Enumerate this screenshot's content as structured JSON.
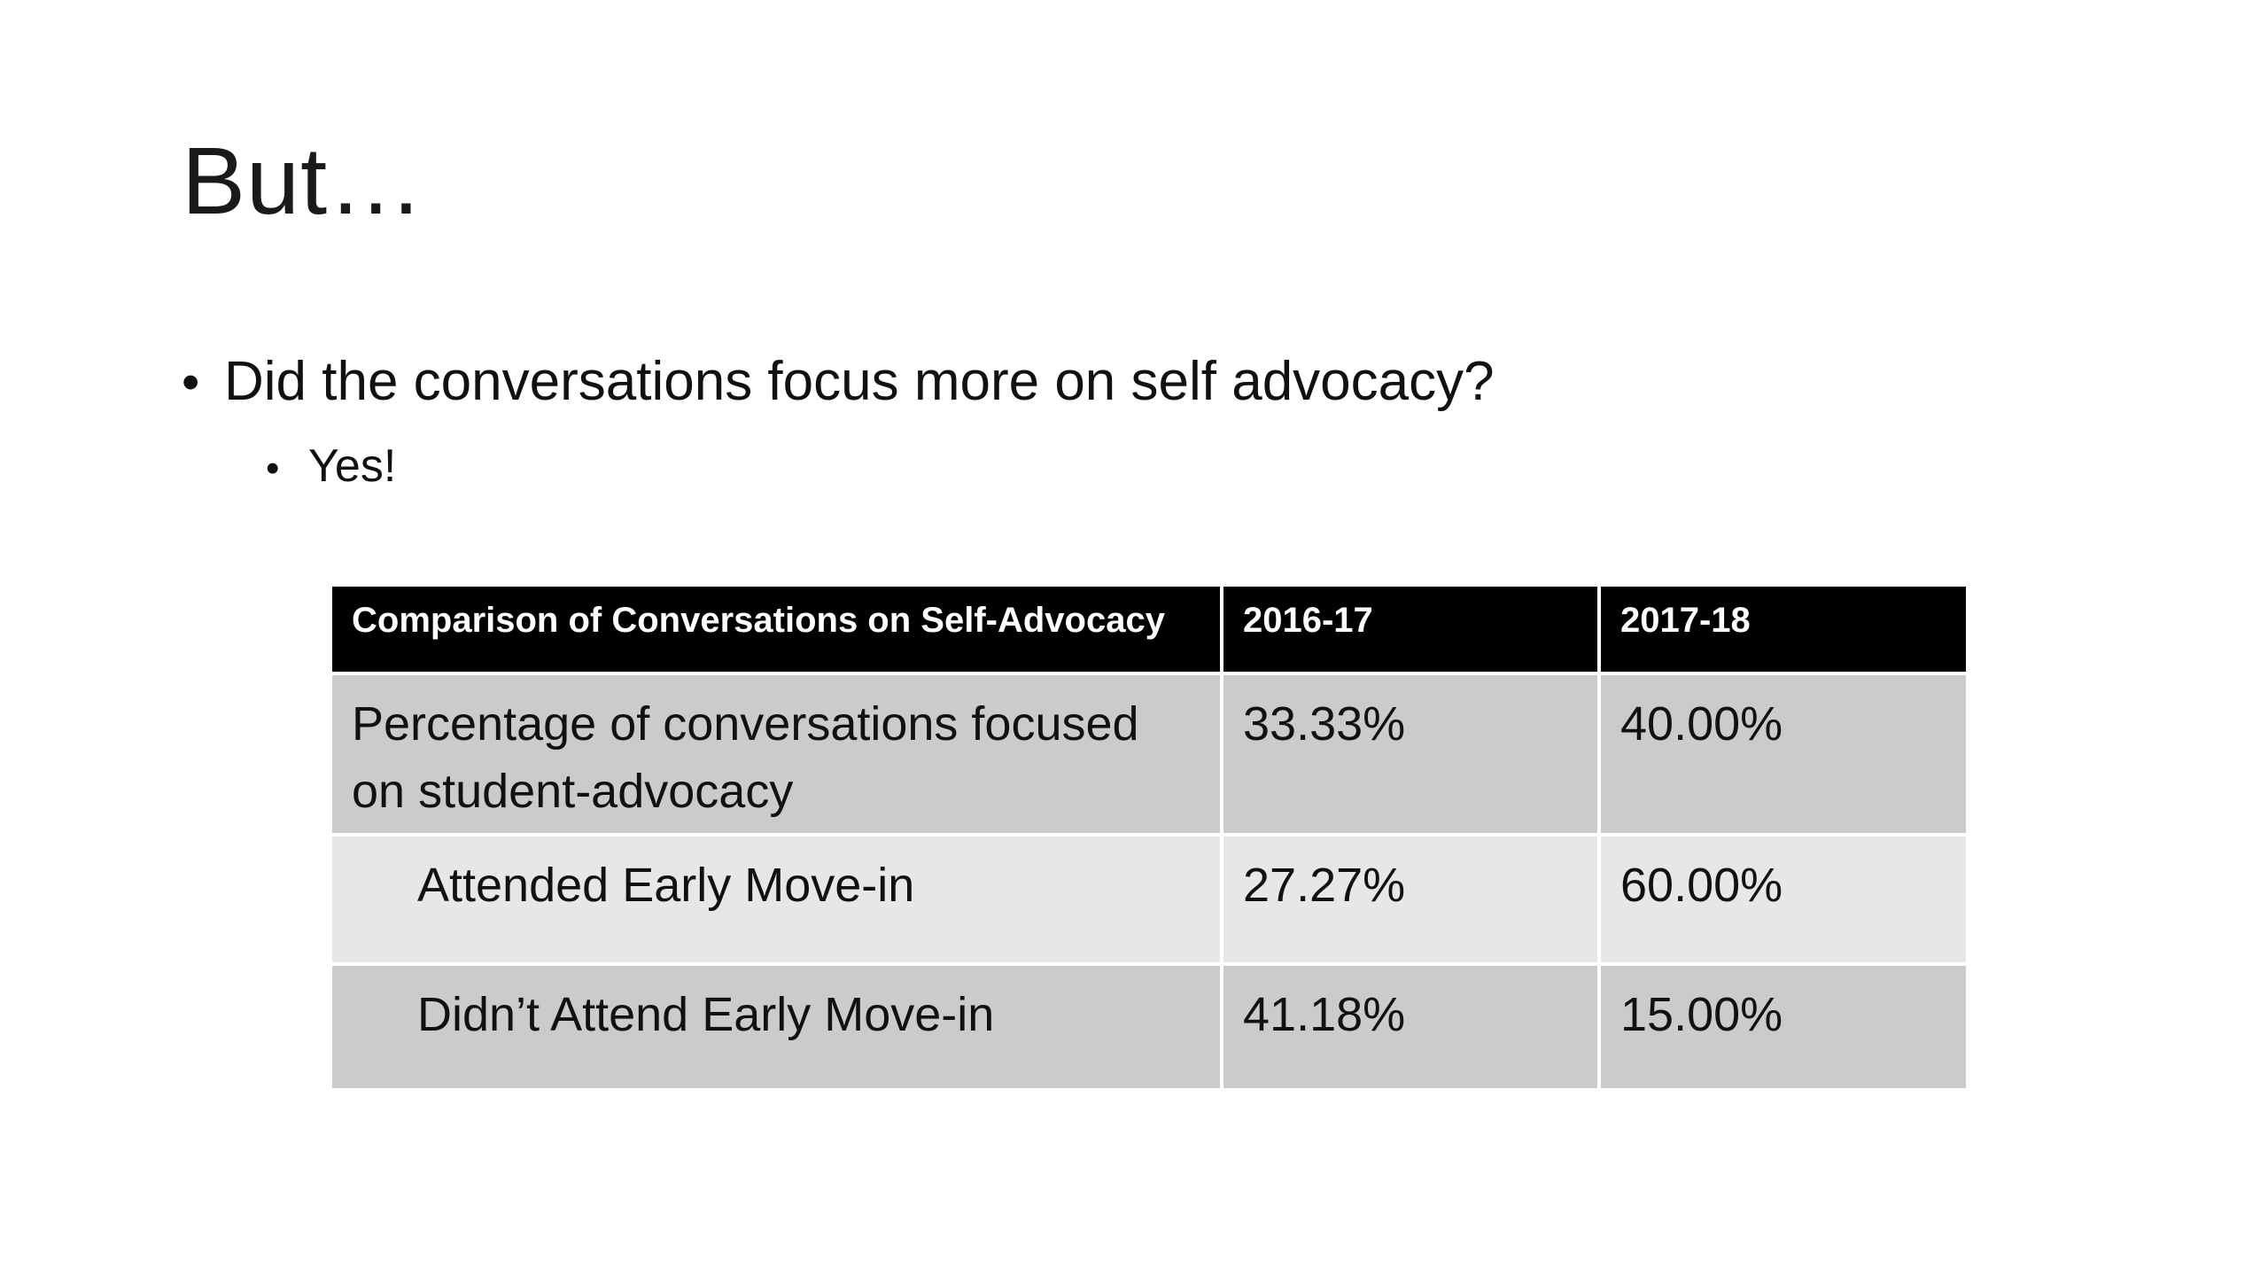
{
  "title": "But…",
  "bullets": {
    "level1": "Did the conversations focus more on self advocacy?",
    "level2": "Yes!",
    "bullet_glyph": "•"
  },
  "table": {
    "headers": [
      "Comparison of Conversations on Self-Advocacy",
      "2016-17",
      "2017-18"
    ],
    "rows": [
      {
        "label": "Percentage of conversations focused on student-advocacy",
        "v2016": "33.33%",
        "v2017": "40.00%"
      },
      {
        "label": "Attended Early Move-in",
        "v2016": "27.27%",
        "v2017": "60.00%"
      },
      {
        "label": "Didn’t Attend Early Move-in",
        "v2016": "41.18%",
        "v2017": "15.00%"
      }
    ]
  },
  "colors": {
    "header_bg": "#000000",
    "row_dark": "#cbcbcb",
    "row_light": "#e7e7e7"
  }
}
